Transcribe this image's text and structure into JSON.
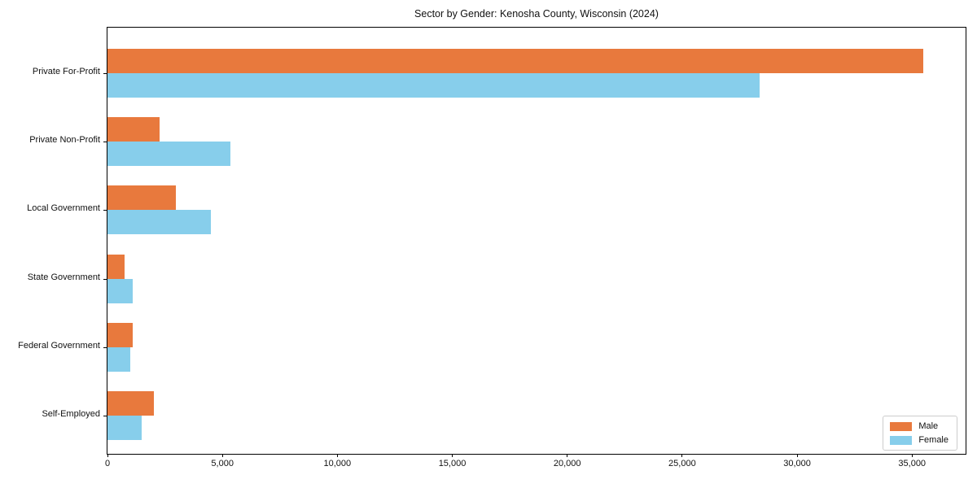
{
  "chart_data": {
    "type": "bar",
    "orientation": "horizontal",
    "title": "Sector by Gender: Kenosha County, Wisconsin (2024)",
    "categories": [
      "Private For-Profit",
      "Private Non-Profit",
      "Local Government",
      "State Government",
      "Federal Government",
      "Self-Employed"
    ],
    "series": [
      {
        "name": "Male",
        "color": "#e8793d",
        "values": [
          35500,
          2270,
          2970,
          740,
          1100,
          2020
        ]
      },
      {
        "name": "Female",
        "color": "#87ceeb",
        "values": [
          28350,
          5340,
          4490,
          1100,
          990,
          1490
        ]
      }
    ],
    "xlabel": "",
    "ylabel": "",
    "xlim": [
      0,
      37400
    ],
    "xticks": [
      0,
      5000,
      10000,
      15000,
      20000,
      25000,
      30000,
      35000
    ],
    "xtick_labels": [
      "0",
      "5,000",
      "10,000",
      "15,000",
      "20,000",
      "25,000",
      "30,000",
      "35,000"
    ],
    "grid": false,
    "legend_position": "lower right"
  }
}
